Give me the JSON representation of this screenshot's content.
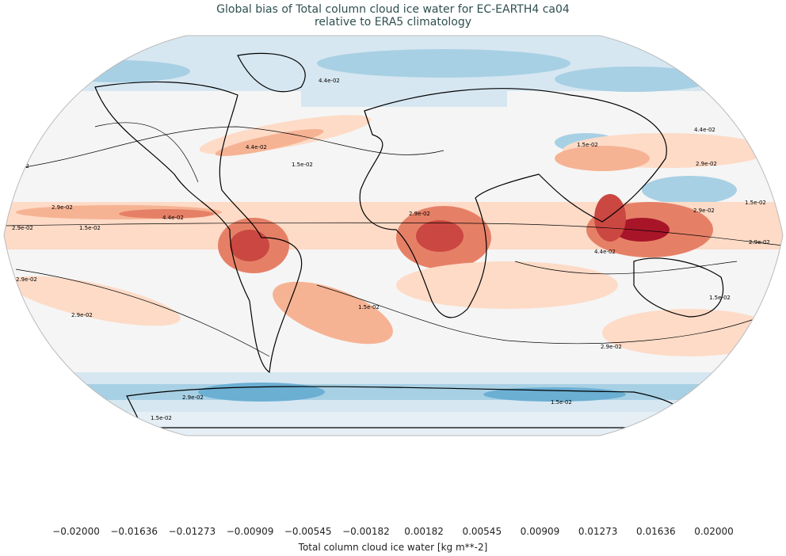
{
  "title": {
    "line1": "Global bias of Total column cloud ice water for EC-EARTH4 ca04",
    "line2": "relative to ERA5 climatology"
  },
  "map": {
    "projection": "Robinson",
    "contour_labels": [
      "1.5e-02",
      "2.9e-02",
      "4.4e-02"
    ]
  },
  "colorbar": {
    "label": "Total column cloud ice water [kg m**-2]",
    "ticks": [
      "−0.02000",
      "−0.01636",
      "−0.01273",
      "−0.00909",
      "−0.00545",
      "−0.00182",
      "0.00182",
      "0.00545",
      "0.00909",
      "0.01273",
      "0.01636",
      "0.02000"
    ],
    "colors": [
      "#1f5fa6",
      "#3a89c0",
      "#6bafd3",
      "#a8d0e4",
      "#d6e7f1",
      "#f5f5f5",
      "#fddbc7",
      "#f6b394",
      "#e58067",
      "#cb4741",
      "#a81529"
    ],
    "under_color": "#053061",
    "over_color": "#67001f",
    "extend": "both"
  }
}
